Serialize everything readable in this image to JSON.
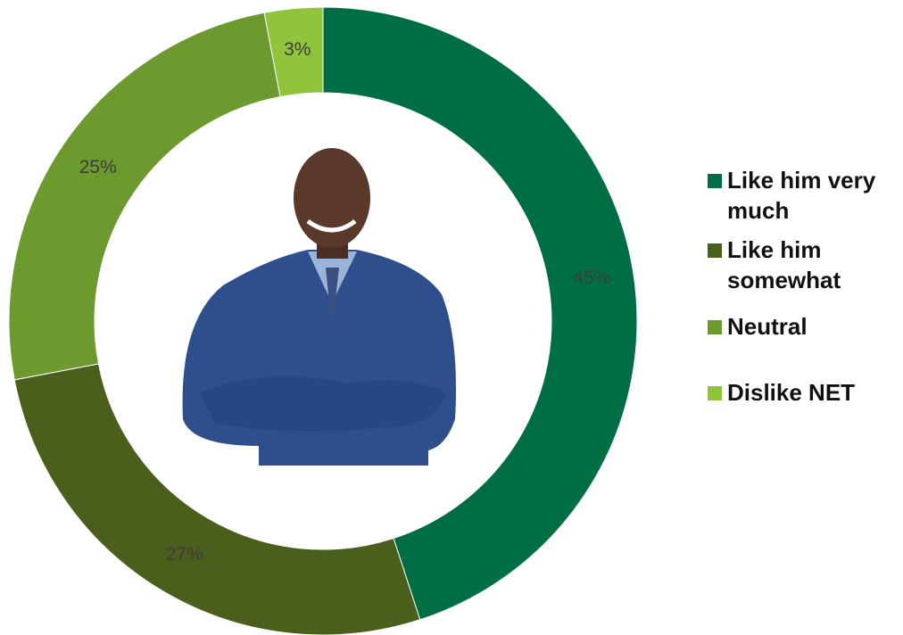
{
  "chart_data": {
    "type": "donut",
    "categories": [
      "Like him very much",
      "Like him somewhat",
      "Neutral",
      "Dislike NET"
    ],
    "values": [
      45,
      27,
      25,
      3
    ],
    "value_labels": [
      "45%",
      "27%",
      "25%",
      "3%"
    ],
    "colors": [
      "#006e45",
      "#4b5f1d",
      "#6c9a2f",
      "#8fc43b"
    ],
    "legend": "right"
  }
}
